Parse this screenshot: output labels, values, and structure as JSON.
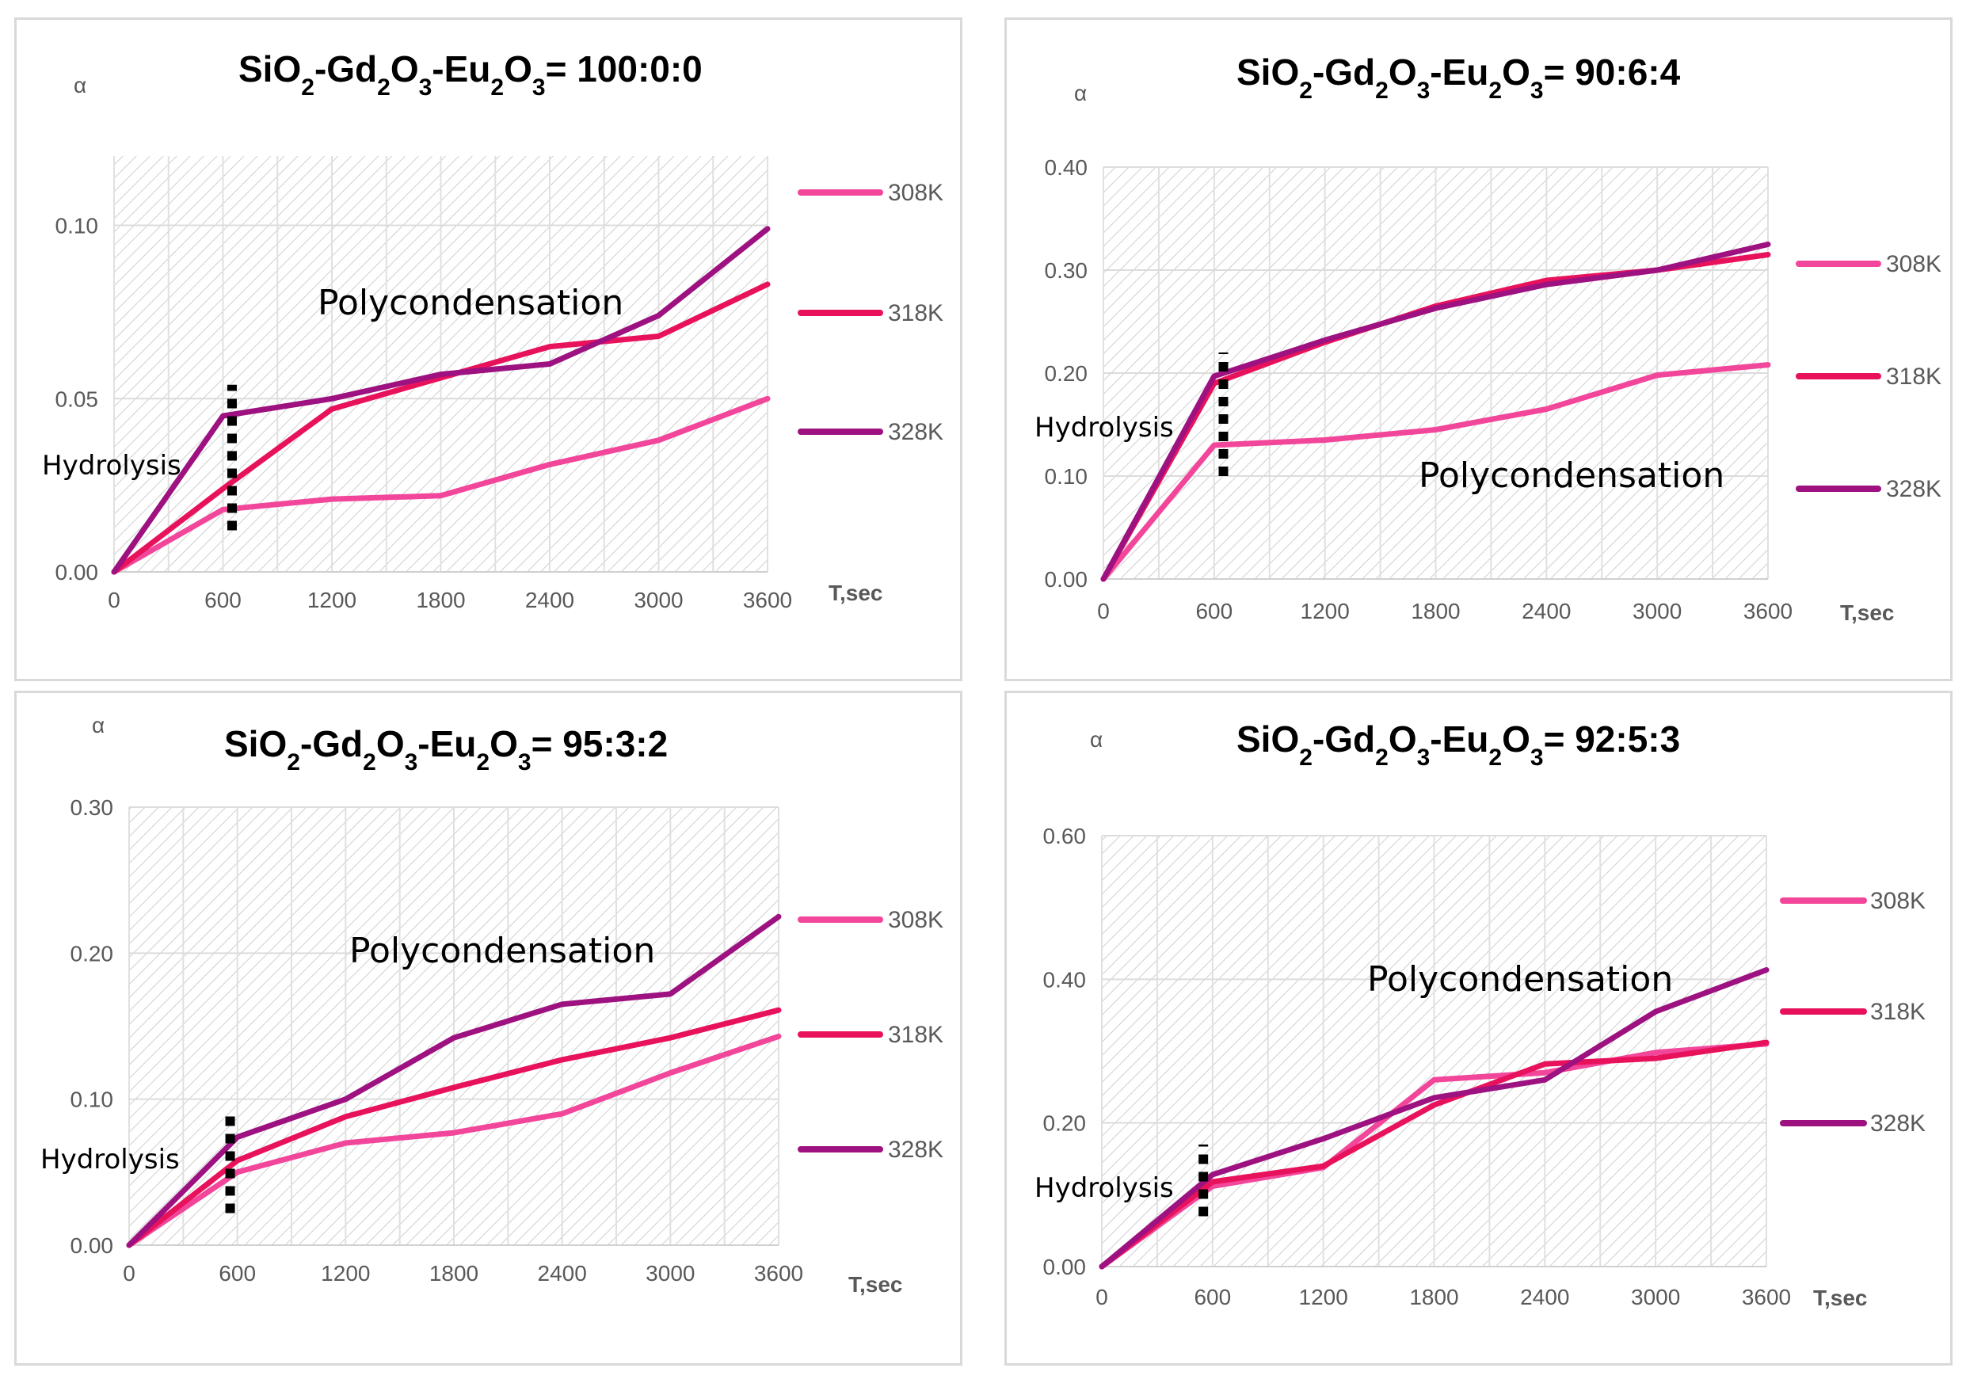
{
  "chart_data": [
    {
      "type": "line",
      "title": "SiO2-Gd2O3-Eu2O3= 100:0:0",
      "title_parts": {
        "a": "SiO",
        "s1": "2",
        "b": "-Gd",
        "s2": "2",
        "c": "O",
        "s3": "3",
        "d": "-Eu",
        "s4": "2",
        "e": "O",
        "s5": "3",
        "f": "= 100:0:0"
      },
      "ylabel": "α",
      "xlabel": "T,sec",
      "x": [
        0,
        600,
        1200,
        1800,
        2400,
        3000,
        3600
      ],
      "xlim": [
        0,
        3600
      ],
      "ylim": [
        0,
        0.12
      ],
      "yticks": [
        0.0,
        0.05,
        0.1
      ],
      "ytick_labels": [
        "0.00",
        "0.05",
        "0.10"
      ],
      "xtick_labels": [
        "0",
        "600",
        "1200",
        "1800",
        "2400",
        "3000",
        "3600"
      ],
      "series": [
        {
          "name": "308K",
          "color": "#f2469b",
          "values": [
            0.0,
            0.018,
            0.021,
            0.022,
            0.031,
            0.038,
            0.05
          ]
        },
        {
          "name": "318K",
          "color": "#e8125c",
          "values": [
            0.0,
            0.024,
            0.047,
            0.056,
            0.065,
            0.068,
            0.083
          ]
        },
        {
          "name": "328K",
          "color": "#9e1180",
          "values": [
            0.0,
            0.045,
            0.05,
            0.057,
            0.06,
            0.074,
            0.099
          ]
        }
      ],
      "annotations": {
        "polycondensation": "Polycondensation",
        "hydrolysis": "Hydrolysis"
      },
      "divider": {
        "x": 650,
        "y_from": 0.012,
        "y_to": 0.054
      }
    },
    {
      "type": "line",
      "title": "SiO2-Gd2O3-Eu2O3= 90:6:4",
      "title_parts": {
        "a": "SiO",
        "s1": "2",
        "b": "-Gd",
        "s2": "2",
        "c": "O",
        "s3": "3",
        "d": "-Eu",
        "s4": "2",
        "e": "O",
        "s5": "3",
        "f": "= 90:6:4"
      },
      "ylabel": "α",
      "xlabel": "T,sec",
      "x": [
        0,
        600,
        1200,
        1800,
        2400,
        3000,
        3600
      ],
      "xlim": [
        0,
        3600
      ],
      "ylim": [
        0,
        0.4
      ],
      "yticks": [
        0.0,
        0.1,
        0.2,
        0.3,
        0.4
      ],
      "ytick_labels": [
        "0.00",
        "0.10",
        "0.20",
        "0.30",
        "0.40"
      ],
      "xtick_labels": [
        "0",
        "600",
        "1200",
        "1800",
        "2400",
        "3000",
        "3600"
      ],
      "series": [
        {
          "name": "308K",
          "color": "#f2469b",
          "values": [
            0.0,
            0.13,
            0.135,
            0.145,
            0.165,
            0.198,
            0.208
          ]
        },
        {
          "name": "318K",
          "color": "#e8125c",
          "values": [
            0.0,
            0.19,
            0.23,
            0.265,
            0.29,
            0.3,
            0.315
          ]
        },
        {
          "name": "328K",
          "color": "#9e1180",
          "values": [
            0.0,
            0.197,
            0.232,
            0.263,
            0.286,
            0.3,
            0.325
          ]
        }
      ],
      "annotations": {
        "polycondensation": "Polycondensation",
        "hydrolysis": "Hydrolysis"
      },
      "divider": {
        "x": 650,
        "y_from": 0.1,
        "y_to": 0.22
      }
    },
    {
      "type": "line",
      "title": "SiO2-Gd2O3-Eu2O3= 95:3:2",
      "title_parts": {
        "a": "SiO",
        "s1": "2",
        "b": "-Gd",
        "s2": "2",
        "c": "O",
        "s3": "3",
        "d": "-Eu",
        "s4": "2",
        "e": "O",
        "s5": "3",
        "f": "= 95:3:2"
      },
      "ylabel": "α",
      "xlabel": "T,sec",
      "x": [
        0,
        600,
        1200,
        1800,
        2400,
        3000,
        3600
      ],
      "xlim": [
        0,
        3600
      ],
      "ylim": [
        0,
        0.3
      ],
      "yticks": [
        0.0,
        0.1,
        0.2,
        0.3
      ],
      "ytick_labels": [
        "0.00",
        "0.10",
        "0.20",
        "0.30"
      ],
      "xtick_labels": [
        "0",
        "600",
        "1200",
        "1800",
        "2400",
        "3000",
        "3600"
      ],
      "series": [
        {
          "name": "308K",
          "color": "#f2469b",
          "values": [
            0.0,
            0.05,
            0.07,
            0.077,
            0.09,
            0.118,
            0.143
          ]
        },
        {
          "name": "318K",
          "color": "#e8125c",
          "values": [
            0.0,
            0.058,
            0.088,
            0.108,
            0.127,
            0.142,
            0.161
          ]
        },
        {
          "name": "328K",
          "color": "#9e1180",
          "values": [
            0.0,
            0.074,
            0.1,
            0.142,
            0.165,
            0.172,
            0.225
          ]
        }
      ],
      "annotations": {
        "polycondensation": "Polycondensation",
        "hydrolysis": "Hydrolysis"
      },
      "divider": {
        "x": 560,
        "y_from": 0.022,
        "y_to": 0.092
      }
    },
    {
      "type": "line",
      "title": "SiO2-Gd2O3-Eu2O3= 92:5:3",
      "title_parts": {
        "a": "SiO",
        "s1": "2",
        "b": "-Gd",
        "s2": "2",
        "c": "O",
        "s3": "3",
        "d": "-Eu",
        "s4": "2",
        "e": "O",
        "s5": "3",
        "f": "= 92:5:3"
      },
      "ylabel": "α",
      "xlabel": "T,sec",
      "x": [
        0,
        600,
        1200,
        1800,
        2400,
        3000,
        3600
      ],
      "xlim": [
        0,
        3600
      ],
      "ylim": [
        0,
        0.6
      ],
      "yticks": [
        0.0,
        0.2,
        0.4,
        0.6
      ],
      "ytick_labels": [
        "0.00",
        "0.20",
        "0.40",
        "0.60"
      ],
      "xtick_labels": [
        "0",
        "600",
        "1200",
        "1800",
        "2400",
        "3000",
        "3600"
      ],
      "series": [
        {
          "name": "308K",
          "color": "#f2469b",
          "values": [
            0.0,
            0.112,
            0.138,
            0.26,
            0.27,
            0.298,
            0.31
          ]
        },
        {
          "name": "318K",
          "color": "#e8125c",
          "values": [
            0.0,
            0.118,
            0.14,
            0.225,
            0.282,
            0.29,
            0.312
          ]
        },
        {
          "name": "328K",
          "color": "#9e1180",
          "values": [
            0.0,
            0.128,
            0.178,
            0.235,
            0.26,
            0.355,
            0.413
          ]
        }
      ],
      "annotations": {
        "polycondensation": "Polycondensation",
        "hydrolysis": "Hydrolysis"
      },
      "divider": {
        "x": 550,
        "y_from": 0.07,
        "y_to": 0.17
      }
    }
  ]
}
